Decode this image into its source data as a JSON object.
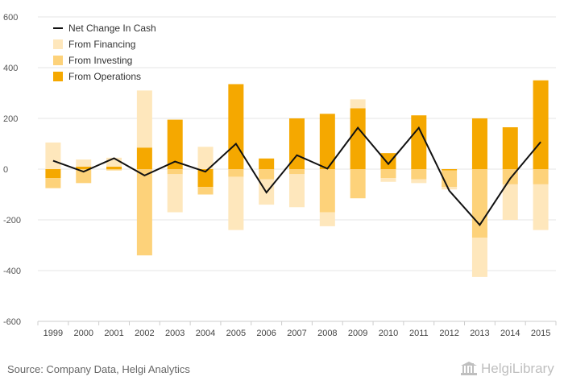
{
  "chart_data": {
    "type": "bar",
    "stacked": true,
    "categories": [
      "1999",
      "2000",
      "2001",
      "2002",
      "2003",
      "2004",
      "2005",
      "2006",
      "2007",
      "2008",
      "2009",
      "2010",
      "2011",
      "2012",
      "2013",
      "2014",
      "2015"
    ],
    "ylim": [
      -600,
      600
    ],
    "yticks": [
      -600,
      -400,
      -200,
      0,
      200,
      400,
      600
    ],
    "ytick_labels": [
      "-600",
      "-400",
      "-200",
      "0",
      "200",
      "400",
      "600"
    ],
    "grid": true,
    "legend_position": "top-left",
    "series": [
      {
        "name": "From Operations",
        "color": "#f5a800",
        "values": [
          -35,
          10,
          10,
          85,
          195,
          -70,
          335,
          42,
          200,
          218,
          240,
          63,
          212,
          -5,
          200,
          165,
          350
        ]
      },
      {
        "name": "From Investing",
        "color": "#fdd27a",
        "values": [
          -40,
          -55,
          -5,
          -340,
          -20,
          -30,
          -30,
          -40,
          -20,
          -170,
          -115,
          -35,
          -40,
          -65,
          -270,
          -60,
          -60
        ]
      },
      {
        "name": "From Financing",
        "color": "#fee7bc",
        "values": [
          105,
          28,
          35,
          225,
          -150,
          88,
          -210,
          -100,
          -130,
          -55,
          35,
          -15,
          -15,
          -10,
          -155,
          -140,
          -180
        ]
      },
      {
        "name": "Net Change In Cash",
        "type": "line",
        "color": "#111111",
        "values": [
          33,
          -10,
          43,
          -25,
          30,
          -10,
          100,
          -92,
          55,
          2,
          163,
          20,
          163,
          -85,
          -220,
          -37,
          107
        ]
      }
    ]
  },
  "footer": {
    "source": "Source: Company Data, Helgi Analytics",
    "brand": "HelgiLibrary"
  }
}
